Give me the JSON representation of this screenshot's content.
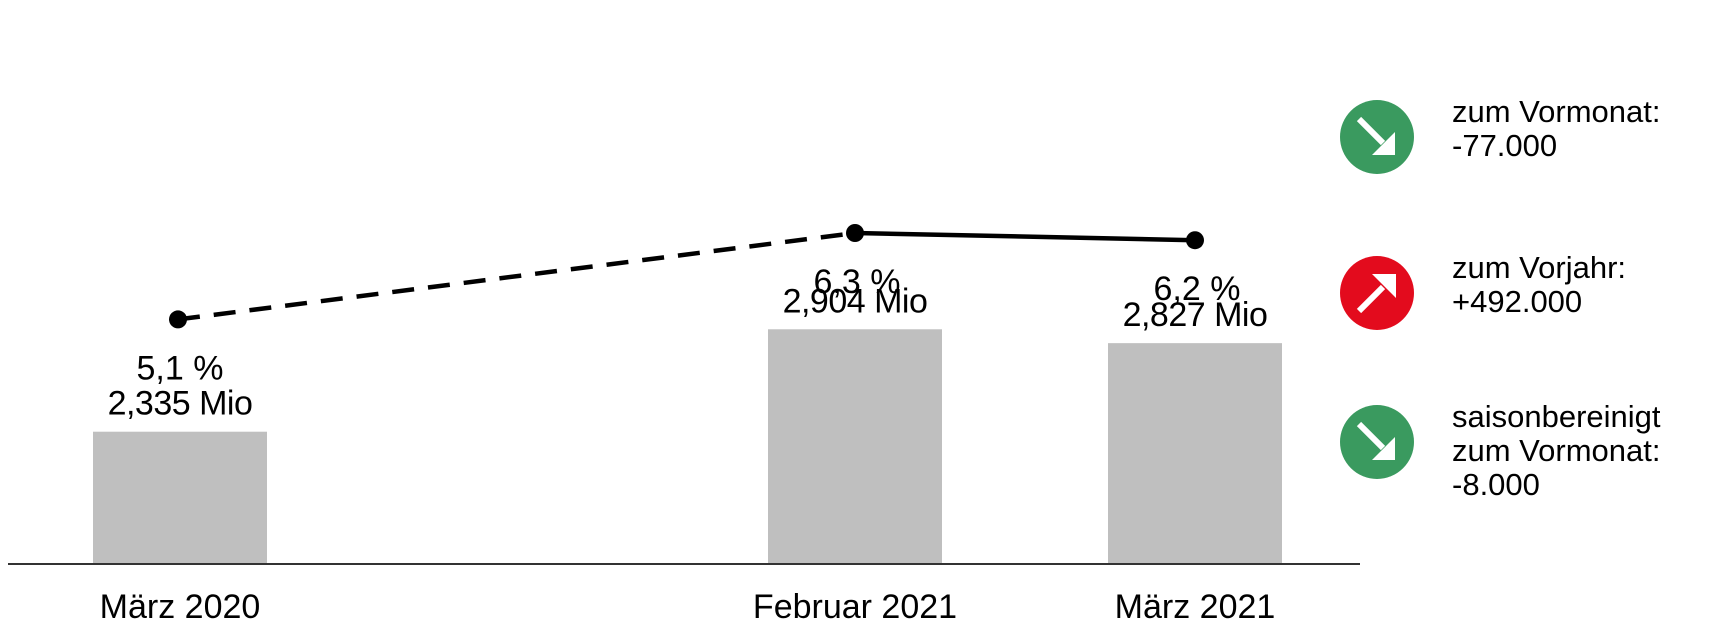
{
  "chart_data": {
    "type": "bar",
    "categories": [
      "März 2020",
      "Februar 2021",
      "März 2021"
    ],
    "bar_series": {
      "values": [
        2.335,
        2.904,
        2.827
      ],
      "labels": [
        "2,335 Mio",
        "2,904 Mio",
        "2,827 Mio"
      ],
      "color": "#bfbfbf"
    },
    "line_series": {
      "values": [
        5.1,
        6.3,
        6.2
      ],
      "labels": [
        "5,1 %",
        "6,3 %",
        "6,2 %"
      ],
      "color": "#000000",
      "segment_styles": [
        "dashed",
        "solid"
      ]
    },
    "title": "",
    "xlabel": "",
    "ylabel": "",
    "grid": false
  },
  "legend": {
    "items": [
      {
        "text": "zum Vormonat:\n-77.000",
        "direction": "down",
        "color": "#3a9a5f",
        "icon": "arrow-down-right-icon"
      },
      {
        "text": "zum Vorjahr:\n+492.000",
        "direction": "up",
        "color": "#e30b1d",
        "icon": "arrow-up-right-icon"
      },
      {
        "text": "saisonbereinigt\nzum Vormonat:\n-8.000",
        "direction": "down",
        "color": "#3a9a5f",
        "icon": "arrow-down-right-icon"
      }
    ]
  }
}
